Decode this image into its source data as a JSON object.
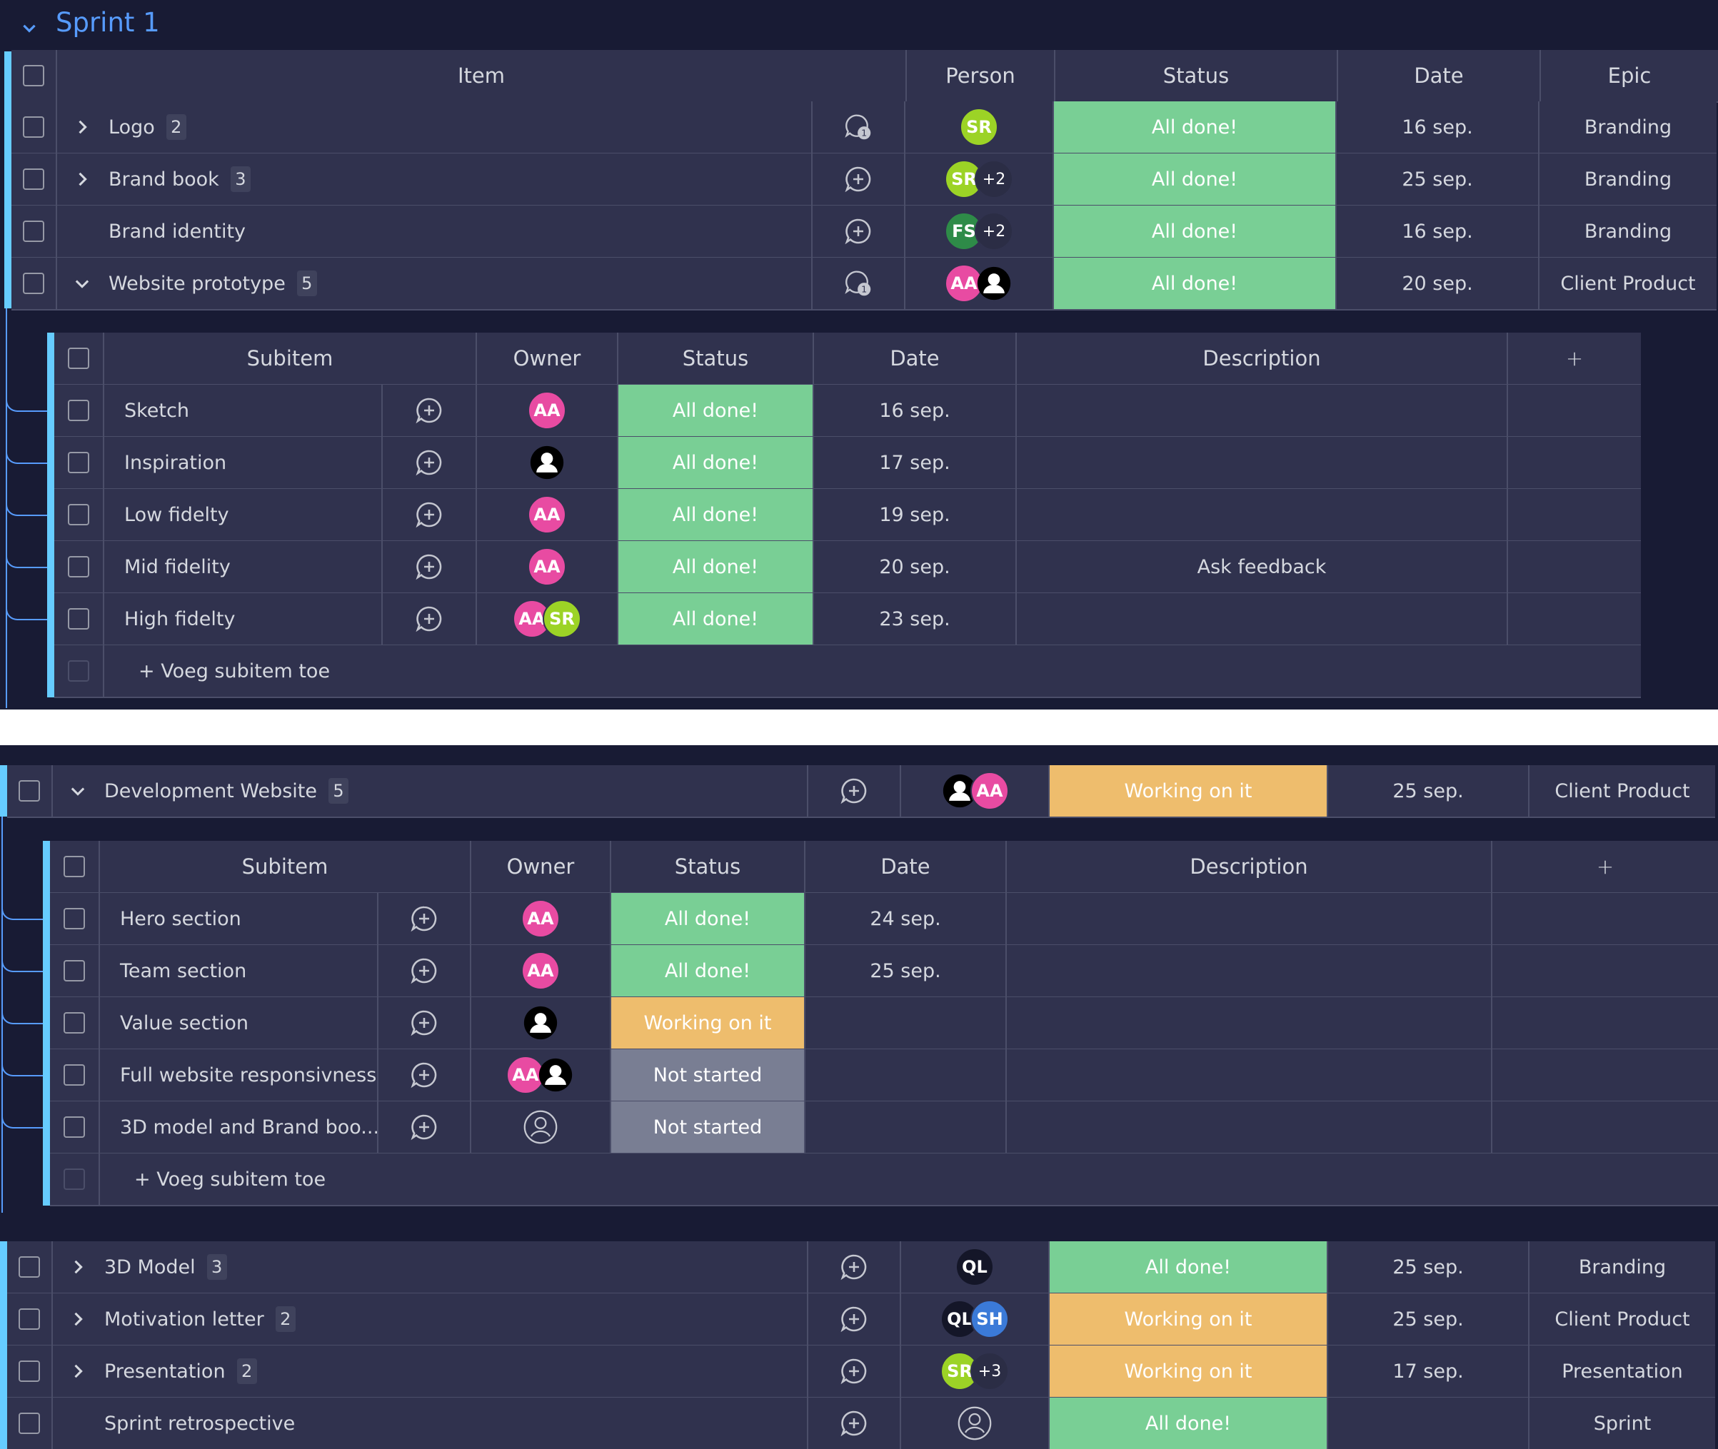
{
  "group": {
    "title": "Sprint 1",
    "color": "#579bfc"
  },
  "main_header": {
    "item": "Item",
    "person": "Person",
    "status": "Status",
    "date": "Date",
    "epic": "Epic"
  },
  "sub_header": {
    "subitem": "Subitem",
    "owner": "Owner",
    "status": "Status",
    "date": "Date",
    "description": "Description"
  },
  "items_top": [
    {
      "name": "Logo",
      "count": "2",
      "expand": "right",
      "conv": "badge",
      "conv_badge": "1",
      "avatars": [
        {
          "t": "sr",
          "label": "SR"
        }
      ],
      "status": "All done!",
      "status_type": "done",
      "date": "16 sep.",
      "epic": "Branding"
    },
    {
      "name": "Brand book",
      "count": "3",
      "expand": "right",
      "conv": "plus",
      "avatars": [
        {
          "t": "sr",
          "label": "SR"
        },
        {
          "t": "plus",
          "label": "+2"
        }
      ],
      "status": "All done!",
      "status_type": "done",
      "date": "25 sep.",
      "epic": "Branding"
    },
    {
      "name": "Brand identity",
      "count": "",
      "expand": "none",
      "conv": "plus",
      "avatars": [
        {
          "t": "fs",
          "label": "FS"
        },
        {
          "t": "plus",
          "label": "+2"
        }
      ],
      "status": "All done!",
      "status_type": "done",
      "date": "16 sep.",
      "epic": "Branding"
    },
    {
      "name": "Website prototype",
      "count": "5",
      "expand": "down",
      "conv": "badge",
      "conv_badge": "1",
      "avatars": [
        {
          "t": "aa",
          "label": "AA"
        },
        {
          "t": "person",
          "label": ""
        }
      ],
      "status": "All done!",
      "status_type": "done",
      "date": "20 sep.",
      "epic": "Client Product"
    }
  ],
  "subitems_1": [
    {
      "name": "Sketch",
      "avatars": [
        {
          "t": "aa",
          "label": "AA"
        }
      ],
      "status": "All done!",
      "status_type": "done",
      "date": "16 sep.",
      "description": ""
    },
    {
      "name": "Inspiration",
      "avatars": [
        {
          "t": "person",
          "label": ""
        }
      ],
      "status": "All done!",
      "status_type": "done",
      "date": "17 sep.",
      "description": ""
    },
    {
      "name": "Low fidelty",
      "avatars": [
        {
          "t": "aa",
          "label": "AA"
        }
      ],
      "status": "All done!",
      "status_type": "done",
      "date": "19 sep.",
      "description": ""
    },
    {
      "name": "Mid fidelity",
      "avatars": [
        {
          "t": "aa",
          "label": "AA"
        }
      ],
      "status": "All done!",
      "status_type": "done",
      "date": "20 sep.",
      "description": "Ask feedback"
    },
    {
      "name": "High fidelty",
      "avatars": [
        {
          "t": "aa",
          "label": "AA"
        },
        {
          "t": "sr",
          "label": "SR"
        }
      ],
      "status": "All done!",
      "status_type": "done",
      "date": "23 sep.",
      "description": ""
    }
  ],
  "add_subitem_label": "+ Voeg subitem toe",
  "dev_item": {
    "name": "Development Website",
    "count": "5",
    "expand": "down",
    "conv": "plus",
    "avatars": [
      {
        "t": "person",
        "label": ""
      },
      {
        "t": "aa",
        "label": "AA"
      }
    ],
    "status": "Working on it",
    "status_type": "work",
    "date": "25 sep.",
    "epic": "Client Product"
  },
  "subitems_2": [
    {
      "name": "Hero section",
      "avatars": [
        {
          "t": "aa",
          "label": "AA"
        }
      ],
      "status": "All done!",
      "status_type": "done",
      "date": "24 sep.",
      "description": ""
    },
    {
      "name": "Team section",
      "avatars": [
        {
          "t": "aa",
          "label": "AA"
        }
      ],
      "status": "All done!",
      "status_type": "done",
      "date": "25 sep.",
      "description": ""
    },
    {
      "name": "Value section",
      "avatars": [
        {
          "t": "person",
          "label": ""
        }
      ],
      "status": "Working on it",
      "status_type": "work",
      "date": "",
      "description": ""
    },
    {
      "name": "Full website responsivness",
      "avatars": [
        {
          "t": "aa",
          "label": "AA"
        },
        {
          "t": "person",
          "label": ""
        }
      ],
      "status": "Not started",
      "status_type": "ns",
      "date": "",
      "description": ""
    },
    {
      "name": "3D model and Brand boo...",
      "avatars": [
        {
          "t": "empty",
          "label": ""
        }
      ],
      "status": "Not started",
      "status_type": "ns",
      "date": "",
      "description": ""
    }
  ],
  "items_bottom": [
    {
      "name": "3D Model",
      "count": "3",
      "expand": "right",
      "conv": "plus",
      "avatars": [
        {
          "t": "ql",
          "label": "QL"
        }
      ],
      "status": "All done!",
      "status_type": "done",
      "date": "25 sep.",
      "epic": "Branding"
    },
    {
      "name": "Motivation letter",
      "count": "2",
      "expand": "right",
      "conv": "plus",
      "avatars": [
        {
          "t": "ql",
          "label": "QL"
        },
        {
          "t": "sh",
          "label": "SH"
        }
      ],
      "status": "Working on it",
      "status_type": "work",
      "date": "25 sep.",
      "epic": "Client Product"
    },
    {
      "name": "Presentation",
      "count": "2",
      "expand": "right",
      "conv": "plus",
      "avatars": [
        {
          "t": "sr",
          "label": "SR"
        },
        {
          "t": "plus",
          "label": "+3"
        }
      ],
      "status": "Working on it",
      "status_type": "work",
      "date": "17 sep.",
      "epic": "Presentation"
    },
    {
      "name": "Sprint retrospective",
      "count": "",
      "expand": "none",
      "conv": "plus",
      "avatars": [
        {
          "t": "empty",
          "label": ""
        }
      ],
      "status": "All done!",
      "status_type": "done",
      "date": "",
      "epic": "Sprint"
    }
  ],
  "colors": {
    "done": "#79cf95",
    "working": "#eebd6d",
    "not_started": "#797e93",
    "background": "#181b34",
    "row": "#30324e"
  }
}
